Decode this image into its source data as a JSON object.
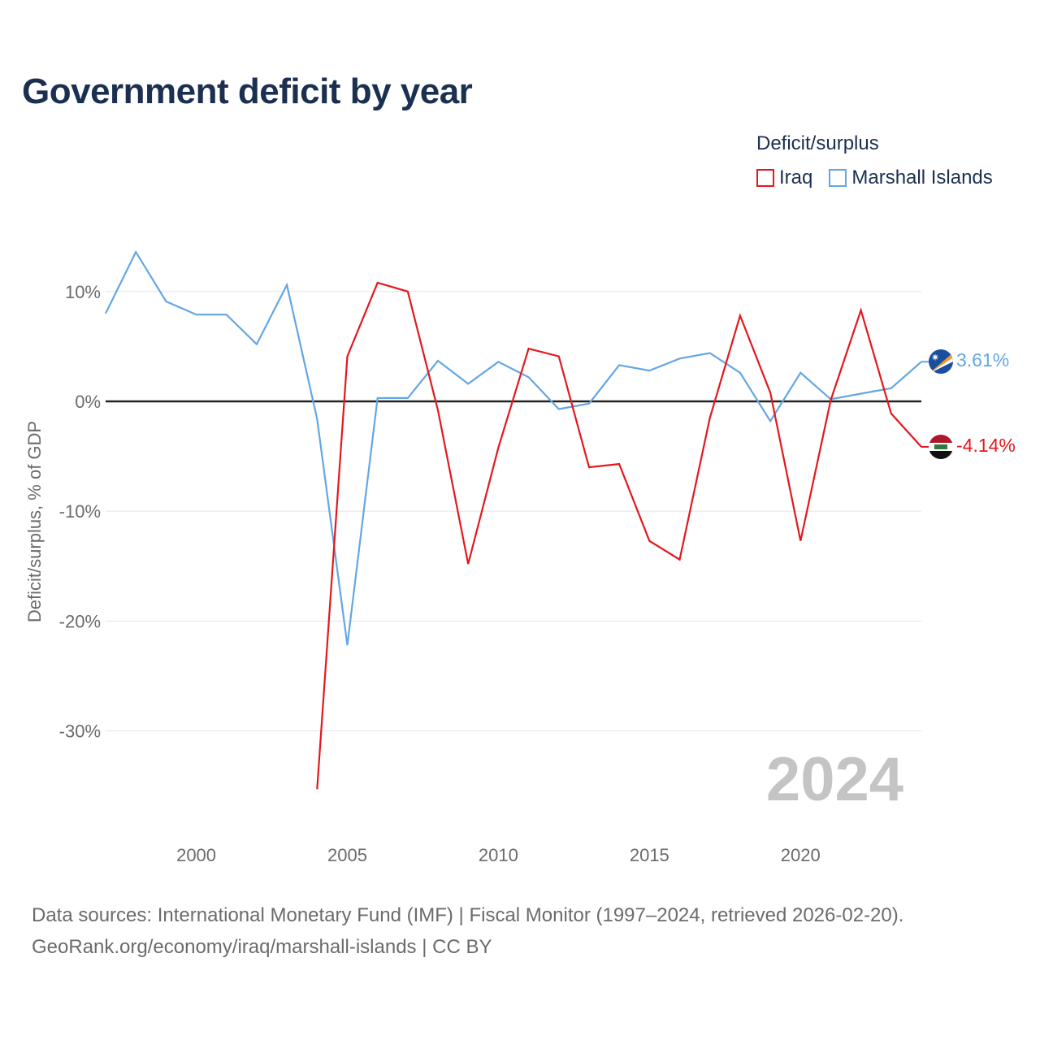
{
  "title": "Government deficit by year",
  "legend": {
    "title": "Deficit/surplus",
    "items": [
      {
        "label": "Iraq",
        "color": "#e3181d"
      },
      {
        "label": "Marshall Islands",
        "color": "#64a6e3"
      }
    ]
  },
  "watermark_year": "2024",
  "source": {
    "line1": "Data sources: International Monetary Fund (IMF) | Fiscal Monitor (1997–2024, retrieved 2026-02-20).",
    "line2": "GeoRank.org/economy/iraq/marshall-islands | CC BY"
  },
  "chart_data": {
    "type": "line",
    "title": "Government deficit by year",
    "xlabel": "",
    "ylabel": "Deficit/surplus, % of GDP",
    "xlim": [
      1997,
      2024
    ],
    "ylim": [
      -38,
      16
    ],
    "x_ticks": [
      2000,
      2005,
      2010,
      2015,
      2020
    ],
    "y_ticks": [
      10,
      0,
      -10,
      -20,
      -30
    ],
    "y_tick_labels": [
      "10%",
      "0%",
      "-10%",
      "-20%",
      "-30%"
    ],
    "series": [
      {
        "name": "Iraq",
        "color": "#e3181d",
        "x": [
          2004,
          2005,
          2006,
          2007,
          2008,
          2009,
          2010,
          2011,
          2012,
          2013,
          2014,
          2015,
          2016,
          2017,
          2018,
          2019,
          2020,
          2021,
          2022,
          2023,
          2024
        ],
        "values": [
          -35.3,
          4.1,
          10.8,
          10.0,
          -0.8,
          -14.8,
          -4.2,
          4.8,
          4.1,
          -6.0,
          -5.7,
          -12.7,
          -14.4,
          -1.5,
          7.8,
          0.8,
          -12.7,
          0.1,
          8.3,
          -1.1,
          -4.14
        ],
        "end_label": "-4.14%"
      },
      {
        "name": "Marshall Islands",
        "color": "#64a6e3",
        "x": [
          1997,
          1998,
          1999,
          2000,
          2001,
          2002,
          2003,
          2004,
          2005,
          2006,
          2007,
          2008,
          2009,
          2010,
          2011,
          2012,
          2013,
          2014,
          2015,
          2016,
          2017,
          2018,
          2019,
          2020,
          2021,
          2022,
          2023,
          2024
        ],
        "values": [
          8.0,
          13.6,
          9.1,
          7.9,
          7.9,
          5.2,
          10.6,
          -1.6,
          -22.2,
          0.3,
          0.3,
          3.7,
          1.6,
          3.6,
          2.2,
          -0.7,
          -0.2,
          3.3,
          2.8,
          3.9,
          4.4,
          2.6,
          -1.8,
          2.6,
          0.2,
          0.7,
          1.2,
          3.61
        ],
        "end_label": "3.61%"
      }
    ]
  }
}
